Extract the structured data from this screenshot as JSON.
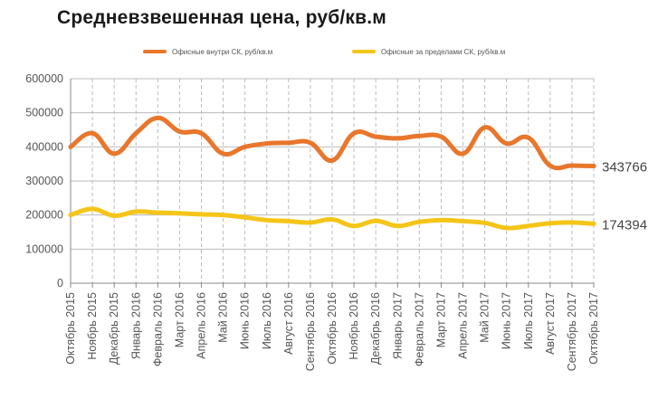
{
  "title": "Средневзвешенная цена, руб/кв.м",
  "colors": {
    "series1": "#E8762B",
    "series2": "#F4C518",
    "grid": "#BBBBBB",
    "axis": "#888888",
    "text": "#555555"
  },
  "chart_data": {
    "type": "line",
    "title": "Средневзвешенная цена, руб/кв.м",
    "xlabel": "",
    "ylabel": "",
    "ylim": [
      0,
      600000
    ],
    "yticks": [
      "0",
      "100000",
      "200000",
      "300000",
      "400000",
      "500000",
      "600000"
    ],
    "legend_position": "top",
    "grid": "dashed vertical, solid horizontal",
    "categories": [
      "Октябрь 2015",
      "Ноябрь 2015",
      "Декабрь 2015",
      "Январь 2016",
      "Февраль 2016",
      "Март 2016",
      "Апрель 2016",
      "Май 2016",
      "Июнь 2016",
      "Июль 2016",
      "Август 2016",
      "Сентябрь 2016",
      "Октябрь 2016",
      "Ноябрь 2016",
      "Декабрь 2016",
      "Январь 2017",
      "Февраль 2017",
      "Март 2017",
      "Апрель 2017",
      "Май 2017",
      "Июнь 2017",
      "Июль 2017",
      "Август 2017",
      "Сентябрь 2017",
      "Октябрь 2017"
    ],
    "series": [
      {
        "name": "Офисные внутри СК, руб/кв.м",
        "color": "#E8762B",
        "values": [
          400000,
          440000,
          380000,
          440000,
          485000,
          445000,
          440000,
          380000,
          400000,
          410000,
          412000,
          412000,
          360000,
          440000,
          430000,
          425000,
          432000,
          430000,
          380000,
          457000,
          410000,
          427000,
          345000,
          345000,
          343766
        ],
        "end_label": "343766"
      },
      {
        "name": "Офисные за пределами СК, руб/кв.м",
        "color": "#F4C518",
        "values": [
          200000,
          218000,
          198000,
          210000,
          207000,
          205000,
          202000,
          200000,
          193000,
          185000,
          182000,
          178000,
          187000,
          168000,
          183000,
          168000,
          180000,
          185000,
          182000,
          177000,
          162000,
          168000,
          176000,
          178000,
          174394
        ],
        "end_label": "174394"
      }
    ]
  }
}
